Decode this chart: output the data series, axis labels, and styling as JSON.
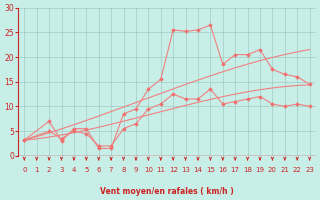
{
  "background_color": "#c8eee8",
  "grid_color": "#a0ccc4",
  "line_color": "#f08080",
  "marker_color": "#f07070",
  "xlabel": "Vent moyen/en rafales ( km/h )",
  "xlabel_color": "#cc2222",
  "tick_color": "#cc2222",
  "xlim": [
    -0.5,
    23.5
  ],
  "ylim": [
    0,
    30
  ],
  "yticks": [
    0,
    5,
    10,
    15,
    20,
    25,
    30
  ],
  "xticks": [
    0,
    1,
    2,
    3,
    4,
    5,
    6,
    7,
    8,
    9,
    10,
    11,
    12,
    13,
    14,
    15,
    16,
    17,
    18,
    19,
    20,
    21,
    22,
    23
  ],
  "jagged1_x": [
    0,
    2,
    3,
    4,
    5,
    6,
    7,
    8,
    9,
    10,
    11,
    12,
    13,
    14,
    15,
    16,
    17,
    18,
    19,
    20,
    21,
    22,
    23
  ],
  "jagged1_y": [
    3.2,
    7,
    3,
    5.5,
    5.5,
    1.5,
    1.5,
    8.5,
    9.5,
    13.5,
    15.5,
    25.5,
    25.2,
    25.5,
    26.5,
    18.5,
    20.5,
    20.5,
    21.5,
    17.5,
    16.5,
    16,
    14.5
  ],
  "jagged2_x": [
    0,
    2,
    3,
    4,
    5,
    6,
    7,
    8,
    9,
    10,
    11,
    12,
    13,
    14,
    15,
    16,
    17,
    18,
    19,
    20,
    21,
    22,
    23
  ],
  "jagged2_y": [
    3.2,
    5,
    3.5,
    5,
    4.5,
    2.0,
    2.0,
    5.5,
    6.5,
    9.5,
    10.5,
    12.5,
    11.5,
    11.5,
    13.5,
    10.5,
    11,
    11.5,
    12,
    10.5,
    10,
    10.5,
    10
  ],
  "smooth_upper_pts": [
    [
      0,
      3.2
    ],
    [
      5,
      7
    ],
    [
      10,
      12
    ],
    [
      15,
      16
    ],
    [
      20,
      20
    ],
    [
      23,
      21.5
    ]
  ],
  "smooth_lower_pts": [
    [
      0,
      3.2
    ],
    [
      5,
      5
    ],
    [
      10,
      8.5
    ],
    [
      15,
      11.5
    ],
    [
      20,
      13.5
    ],
    [
      23,
      14.5
    ]
  ]
}
